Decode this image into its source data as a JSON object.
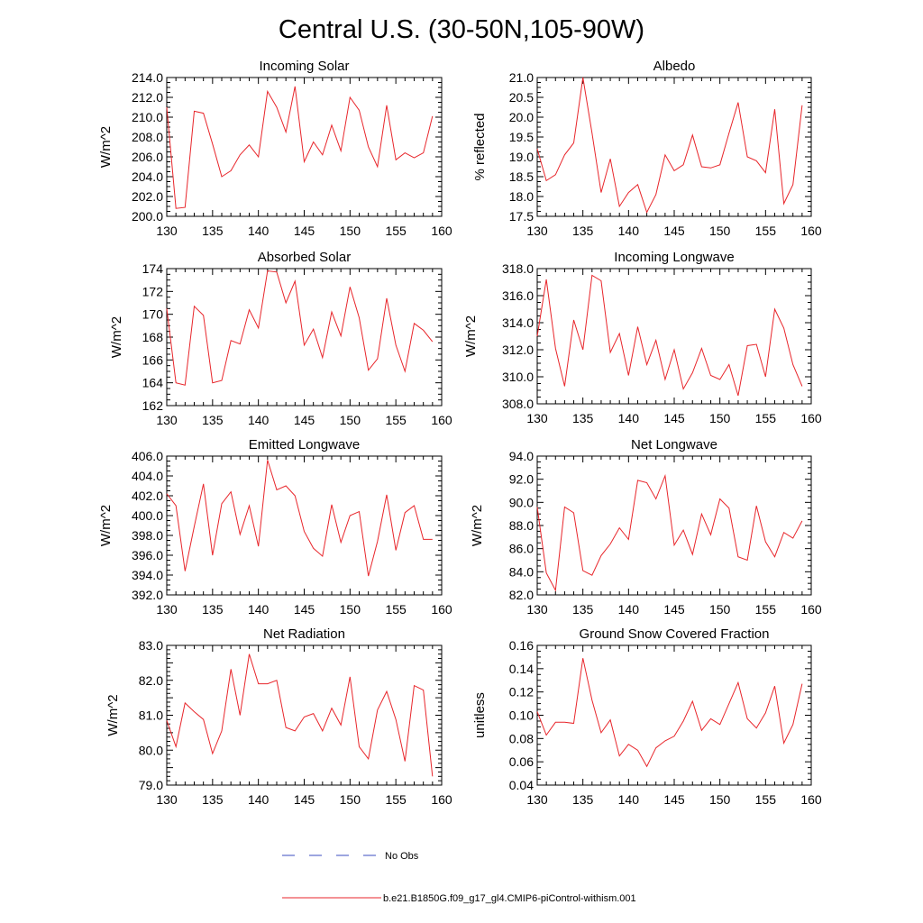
{
  "title": "Central U.S. (30-50N,105-90W)",
  "colors": {
    "model": "#e8262b",
    "obs": "#3b4cc0",
    "axis": "#000000"
  },
  "legend": {
    "obs_label": "No Obs",
    "model_label": "b.e21.B1850G.f09_g17_gl4.CMIP6-piControl-withism.001"
  },
  "chart_data": [
    {
      "type": "line",
      "title": "Incoming Solar",
      "ylabel": "W/m^2",
      "xlim": [
        130,
        160
      ],
      "ylim": [
        200.0,
        214.0
      ],
      "xticks": [
        130,
        135,
        140,
        145,
        150,
        155,
        160
      ],
      "yticks": [
        200.0,
        202.0,
        204.0,
        206.0,
        208.0,
        210.0,
        212.0,
        214.0
      ],
      "ytick_labels": [
        "200.0",
        "202.0",
        "204.0",
        "206.0",
        "208.0",
        "210.0",
        "212.0",
        "214.0"
      ],
      "x": [
        130,
        131,
        132,
        133,
        134,
        135,
        136,
        137,
        138,
        139,
        140,
        141,
        142,
        143,
        144,
        145,
        146,
        147,
        148,
        149,
        150,
        151,
        152,
        153,
        154,
        155,
        156,
        157,
        158,
        159
      ],
      "series": [
        {
          "name": "model",
          "values": [
            211.0,
            200.8,
            200.9,
            210.6,
            210.4,
            207.3,
            204.0,
            204.6,
            206.2,
            207.2,
            206.0,
            212.6,
            211.0,
            208.5,
            213.1,
            205.5,
            207.5,
            206.2,
            209.2,
            206.6,
            212.0,
            210.7,
            207.0,
            205.0,
            211.2,
            205.7,
            206.4,
            205.9,
            206.4,
            210.1
          ]
        }
      ]
    },
    {
      "type": "line",
      "title": "Albedo",
      "ylabel": "% reflected",
      "xlim": [
        130,
        160
      ],
      "ylim": [
        17.5,
        21.0
      ],
      "xticks": [
        130,
        135,
        140,
        145,
        150,
        155,
        160
      ],
      "yticks": [
        17.5,
        18.0,
        18.5,
        19.0,
        19.5,
        20.0,
        20.5,
        21.0
      ],
      "ytick_labels": [
        "17.5",
        "18.0",
        "18.5",
        "19.0",
        "19.5",
        "20.0",
        "20.5",
        "21.0"
      ],
      "x": [
        130,
        131,
        132,
        133,
        134,
        135,
        136,
        137,
        138,
        139,
        140,
        141,
        142,
        143,
        144,
        145,
        146,
        147,
        148,
        149,
        150,
        151,
        152,
        153,
        154,
        155,
        156,
        157,
        158,
        159
      ],
      "series": [
        {
          "name": "model",
          "values": [
            19.2,
            18.4,
            18.55,
            19.05,
            19.35,
            21.0,
            19.6,
            18.1,
            18.95,
            17.75,
            18.1,
            18.3,
            17.6,
            18.05,
            19.05,
            18.65,
            18.8,
            19.55,
            18.75,
            18.72,
            18.8,
            19.6,
            20.37,
            19.0,
            18.9,
            18.6,
            20.2,
            17.82,
            18.3,
            20.3
          ]
        }
      ]
    },
    {
      "type": "line",
      "title": "Absorbed Solar",
      "ylabel": "W/m^2",
      "xlim": [
        130,
        160
      ],
      "ylim": [
        162,
        174
      ],
      "xticks": [
        130,
        135,
        140,
        145,
        150,
        155,
        160
      ],
      "yticks": [
        162,
        164,
        166,
        168,
        170,
        172,
        174
      ],
      "ytick_labels": [
        "162",
        "164",
        "166",
        "168",
        "170",
        "172",
        "174"
      ],
      "x": [
        130,
        131,
        132,
        133,
        134,
        135,
        136,
        137,
        138,
        139,
        140,
        141,
        142,
        143,
        144,
        145,
        146,
        147,
        148,
        149,
        150,
        151,
        152,
        153,
        154,
        155,
        156,
        157,
        158,
        159
      ],
      "series": [
        {
          "name": "model",
          "values": [
            170.5,
            164.0,
            163.8,
            170.7,
            169.9,
            164.0,
            164.2,
            167.7,
            167.4,
            170.4,
            168.8,
            173.8,
            173.7,
            171.0,
            172.9,
            167.3,
            168.7,
            166.2,
            170.2,
            168.1,
            172.4,
            169.7,
            165.1,
            166.1,
            171.4,
            167.3,
            165.0,
            169.2,
            168.6,
            167.6
          ]
        }
      ]
    },
    {
      "type": "line",
      "title": "Incoming Longwave",
      "ylabel": "W/m^2",
      "xlim": [
        130,
        160
      ],
      "ylim": [
        308.0,
        318.0
      ],
      "xticks": [
        130,
        135,
        140,
        145,
        150,
        155,
        160
      ],
      "yticks": [
        308.0,
        310.0,
        312.0,
        314.0,
        316.0,
        318.0
      ],
      "ytick_labels": [
        "308.0",
        "310.0",
        "312.0",
        "314.0",
        "316.0",
        "318.0"
      ],
      "x": [
        130,
        131,
        132,
        133,
        134,
        135,
        136,
        137,
        138,
        139,
        140,
        141,
        142,
        143,
        144,
        145,
        146,
        147,
        148,
        149,
        150,
        151,
        152,
        153,
        154,
        155,
        156,
        157,
        158,
        159
      ],
      "series": [
        {
          "name": "model",
          "values": [
            313.0,
            317.2,
            312.1,
            309.3,
            314.2,
            312.0,
            317.5,
            317.1,
            311.8,
            313.2,
            310.1,
            313.7,
            310.9,
            312.7,
            309.8,
            312.0,
            309.1,
            310.3,
            312.1,
            310.1,
            309.8,
            310.9,
            308.6,
            312.3,
            312.4,
            310.0,
            315.0,
            313.6,
            310.9,
            309.3
          ]
        }
      ]
    },
    {
      "type": "line",
      "title": "Emitted Longwave",
      "ylabel": "W/m^2",
      "xlim": [
        130,
        160
      ],
      "ylim": [
        392.0,
        406.0
      ],
      "xticks": [
        130,
        135,
        140,
        145,
        150,
        155,
        160
      ],
      "yticks": [
        392.0,
        394.0,
        396.0,
        398.0,
        400.0,
        402.0,
        404.0,
        406.0
      ],
      "ytick_labels": [
        "392.0",
        "394.0",
        "396.0",
        "398.0",
        "400.0",
        "402.0",
        "404.0",
        "406.0"
      ],
      "x": [
        130,
        131,
        132,
        133,
        134,
        135,
        136,
        137,
        138,
        139,
        140,
        141,
        142,
        143,
        144,
        145,
        146,
        147,
        148,
        149,
        150,
        151,
        152,
        153,
        154,
        155,
        156,
        157,
        158,
        159
      ],
      "series": [
        {
          "name": "model",
          "values": [
            402.2,
            401.0,
            394.4,
            398.9,
            403.2,
            396.0,
            401.2,
            402.4,
            398.1,
            401.0,
            396.9,
            405.6,
            402.6,
            403.0,
            402.0,
            398.4,
            396.7,
            395.9,
            401.1,
            397.3,
            400.0,
            400.4,
            393.9,
            397.4,
            402.1,
            396.5,
            400.3,
            401.0,
            397.6,
            397.6
          ]
        }
      ]
    },
    {
      "type": "line",
      "title": "Net Longwave",
      "ylabel": "W/m^2",
      "xlim": [
        130,
        160
      ],
      "ylim": [
        82.0,
        94.0
      ],
      "xticks": [
        130,
        135,
        140,
        145,
        150,
        155,
        160
      ],
      "yticks": [
        82.0,
        84.0,
        86.0,
        88.0,
        90.0,
        92.0,
        94.0
      ],
      "ytick_labels": [
        "82.0",
        "84.0",
        "86.0",
        "88.0",
        "90.0",
        "92.0",
        "94.0"
      ],
      "x": [
        130,
        131,
        132,
        133,
        134,
        135,
        136,
        137,
        138,
        139,
        140,
        141,
        142,
        143,
        144,
        145,
        146,
        147,
        148,
        149,
        150,
        151,
        152,
        153,
        154,
        155,
        156,
        157,
        158,
        159
      ],
      "series": [
        {
          "name": "model",
          "values": [
            89.6,
            83.9,
            82.4,
            89.6,
            89.1,
            84.1,
            83.7,
            85.4,
            86.4,
            87.8,
            86.8,
            91.9,
            91.7,
            90.3,
            92.3,
            86.3,
            87.6,
            85.5,
            89.0,
            87.2,
            90.3,
            89.5,
            85.3,
            85.0,
            89.7,
            86.6,
            85.3,
            87.4,
            86.9,
            88.4
          ]
        }
      ]
    },
    {
      "type": "line",
      "title": "Net Radiation",
      "ylabel": "W/m^2",
      "xlim": [
        130,
        160
      ],
      "ylim": [
        79.0,
        83.0
      ],
      "xticks": [
        130,
        135,
        140,
        145,
        150,
        155,
        160
      ],
      "yticks": [
        79.0,
        79.5,
        80.0,
        80.5,
        81.0,
        81.5,
        82.0,
        82.5,
        83.0
      ],
      "ytick_labels": [
        "79.0",
        "",
        "80.0",
        "",
        "81.0",
        "",
        "82.0",
        "",
        "83.0"
      ],
      "x": [
        130,
        131,
        132,
        133,
        134,
        135,
        136,
        137,
        138,
        139,
        140,
        141,
        142,
        143,
        144,
        145,
        146,
        147,
        148,
        149,
        150,
        151,
        152,
        153,
        154,
        155,
        156,
        157,
        158,
        159
      ],
      "series": [
        {
          "name": "model",
          "values": [
            80.85,
            80.1,
            81.35,
            81.1,
            80.88,
            79.9,
            80.55,
            82.32,
            81.0,
            82.75,
            81.9,
            81.9,
            82.0,
            80.65,
            80.55,
            80.95,
            81.05,
            80.55,
            81.2,
            80.72,
            82.1,
            80.1,
            79.75,
            81.15,
            81.68,
            80.88,
            79.68,
            81.85,
            81.72,
            79.25
          ]
        }
      ]
    },
    {
      "type": "line",
      "title": "Ground Snow Covered Fraction",
      "ylabel": "unitless",
      "xlim": [
        130,
        160
      ],
      "ylim": [
        0.04,
        0.16
      ],
      "xticks": [
        130,
        135,
        140,
        145,
        150,
        155,
        160
      ],
      "yticks": [
        0.04,
        0.06,
        0.08,
        0.1,
        0.12,
        0.14,
        0.16
      ],
      "ytick_labels": [
        "0.04",
        "0.06",
        "0.08",
        "0.10",
        "0.12",
        "0.14",
        "0.16"
      ],
      "x": [
        130,
        131,
        132,
        133,
        134,
        135,
        136,
        137,
        138,
        139,
        140,
        141,
        142,
        143,
        144,
        145,
        146,
        147,
        148,
        149,
        150,
        151,
        152,
        153,
        154,
        155,
        156,
        157,
        158,
        159
      ],
      "series": [
        {
          "name": "model",
          "values": [
            0.103,
            0.083,
            0.094,
            0.094,
            0.093,
            0.149,
            0.113,
            0.085,
            0.096,
            0.065,
            0.075,
            0.07,
            0.056,
            0.072,
            0.078,
            0.082,
            0.095,
            0.112,
            0.087,
            0.097,
            0.092,
            0.11,
            0.128,
            0.097,
            0.089,
            0.102,
            0.125,
            0.076,
            0.092,
            0.127
          ]
        }
      ]
    }
  ]
}
